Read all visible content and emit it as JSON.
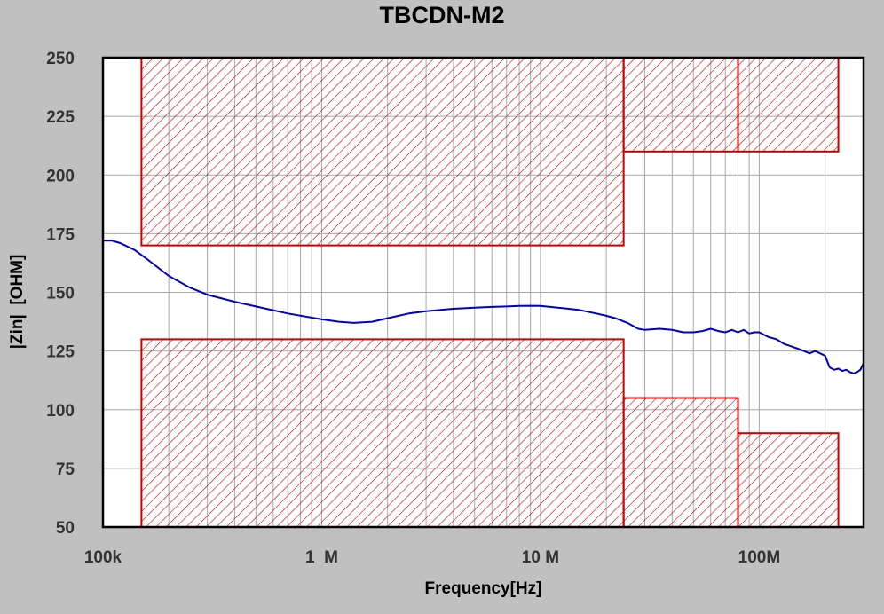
{
  "chart_data": {
    "type": "line",
    "title": "TBCDN-M2",
    "xlabel": "Frequency[Hz]",
    "ylabel": "|Zin|  [OHM]",
    "x_scale": "log",
    "xlim": [
      100000,
      300000000
    ],
    "ylim": [
      50,
      250
    ],
    "x_ticks": [
      {
        "value": 100000,
        "label": "100k"
      },
      {
        "value": 1000000,
        "label": "1  M"
      },
      {
        "value": 10000000,
        "label": "10 M"
      },
      {
        "value": 100000000,
        "label": "100M"
      }
    ],
    "y_ticks": [
      50,
      75,
      100,
      125,
      150,
      175,
      200,
      225,
      250
    ],
    "grid": true,
    "colors": {
      "line": "#0000c8",
      "mask": "#cc0000",
      "grid": "#a8a8a8",
      "background": "#c0c0c0",
      "plot": "#ffffff"
    },
    "mask_regions": [
      {
        "x": [
          150000,
          24000000
        ],
        "y": [
          170,
          250
        ]
      },
      {
        "x": [
          24000000,
          80000000
        ],
        "y": [
          210,
          250
        ]
      },
      {
        "x": [
          80000000,
          230000000
        ],
        "y": [
          210,
          250
        ]
      },
      {
        "x": [
          150000,
          24000000
        ],
        "y": [
          50,
          130
        ]
      },
      {
        "x": [
          24000000,
          80000000
        ],
        "y": [
          50,
          105
        ]
      },
      {
        "x": [
          80000000,
          230000000
        ],
        "y": [
          50,
          90
        ]
      }
    ],
    "series": [
      {
        "x": [
          100000,
          110000,
          120000,
          140000,
          160000,
          200000,
          250000,
          300000,
          400000,
          500000,
          700000,
          1000000,
          1200000,
          1400000,
          1700000,
          2000000,
          2500000,
          3000000,
          4000000,
          5000000,
          6000000,
          7000000,
          8000000,
          9000000,
          10000000,
          12000000,
          15000000,
          18000000,
          20000000,
          22000000,
          25000000,
          28000000,
          30000000,
          35000000,
          40000000,
          45000000,
          50000000,
          55000000,
          60000000,
          65000000,
          70000000,
          75000000,
          80000000,
          85000000,
          90000000,
          95000000,
          100000000,
          110000000,
          120000000,
          130000000,
          140000000,
          150000000,
          160000000,
          170000000,
          180000000,
          190000000,
          200000000,
          210000000,
          220000000,
          230000000,
          240000000,
          250000000,
          260000000,
          270000000,
          280000000,
          290000000,
          300000000
        ],
        "y": [
          172,
          172,
          171,
          168,
          164,
          157,
          152,
          149,
          146,
          144,
          141,
          138.5,
          137.5,
          137,
          137.5,
          139,
          141,
          142,
          143,
          143.5,
          143.8,
          144,
          144.2,
          144.3,
          144.2,
          143.5,
          142.5,
          141,
          140,
          139,
          137,
          134.5,
          134,
          134.5,
          134,
          133,
          133,
          133.5,
          134.5,
          133.5,
          133,
          134,
          133,
          134,
          132.5,
          133,
          133,
          131,
          130,
          128,
          127,
          126,
          125,
          124,
          125,
          124,
          123,
          118,
          117,
          117.5,
          116.5,
          117,
          116,
          115.5,
          116,
          117,
          120
        ]
      }
    ]
  }
}
